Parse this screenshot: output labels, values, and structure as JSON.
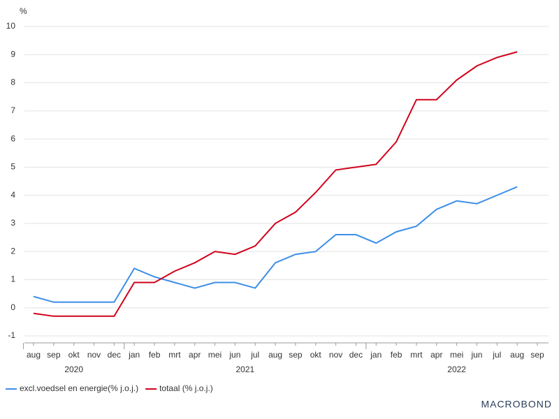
{
  "chart_data": {
    "type": "line",
    "y_label": "%",
    "categories": [
      "aug",
      "sep",
      "okt",
      "nov",
      "dec",
      "jan",
      "feb",
      "mrt",
      "apr",
      "mei",
      "jun",
      "jul",
      "aug",
      "sep",
      "okt",
      "nov",
      "dec",
      "jan",
      "feb",
      "mrt",
      "apr",
      "mei",
      "jun",
      "jul",
      "aug",
      "sep"
    ],
    "year_groups": [
      {
        "label": "2020",
        "from": 0,
        "to": 4
      },
      {
        "label": "2021",
        "from": 5,
        "to": 16
      },
      {
        "label": "2022",
        "from": 17,
        "to": 25
      }
    ],
    "series": [
      {
        "name": "excl.voedsel en energie(% j.o.j.)",
        "color": "#3d8ee8",
        "values": [
          0.4,
          0.2,
          0.2,
          0.2,
          0.2,
          1.4,
          1.1,
          0.9,
          0.7,
          0.9,
          0.9,
          0.7,
          1.6,
          1.9,
          2.0,
          2.6,
          2.6,
          2.3,
          2.7,
          2.9,
          3.5,
          3.8,
          3.7,
          4.0,
          4.3,
          null
        ]
      },
      {
        "name": "totaal (% j.o.j.)",
        "color": "#d0021b",
        "values": [
          -0.2,
          -0.3,
          -0.3,
          -0.3,
          -0.3,
          0.9,
          0.9,
          1.3,
          1.6,
          2.0,
          1.9,
          2.2,
          3.0,
          3.4,
          4.1,
          4.9,
          5.0,
          5.1,
          5.9,
          7.4,
          7.4,
          8.1,
          8.6,
          8.9,
          9.1,
          null
        ]
      }
    ],
    "ylim": [
      -1,
      10
    ],
    "yticks": [
      -1,
      0,
      1,
      2,
      3,
      4,
      5,
      6,
      7,
      8,
      9,
      10
    ],
    "grid": true,
    "legend": "bottom-left",
    "logo": "MACROBOND"
  }
}
